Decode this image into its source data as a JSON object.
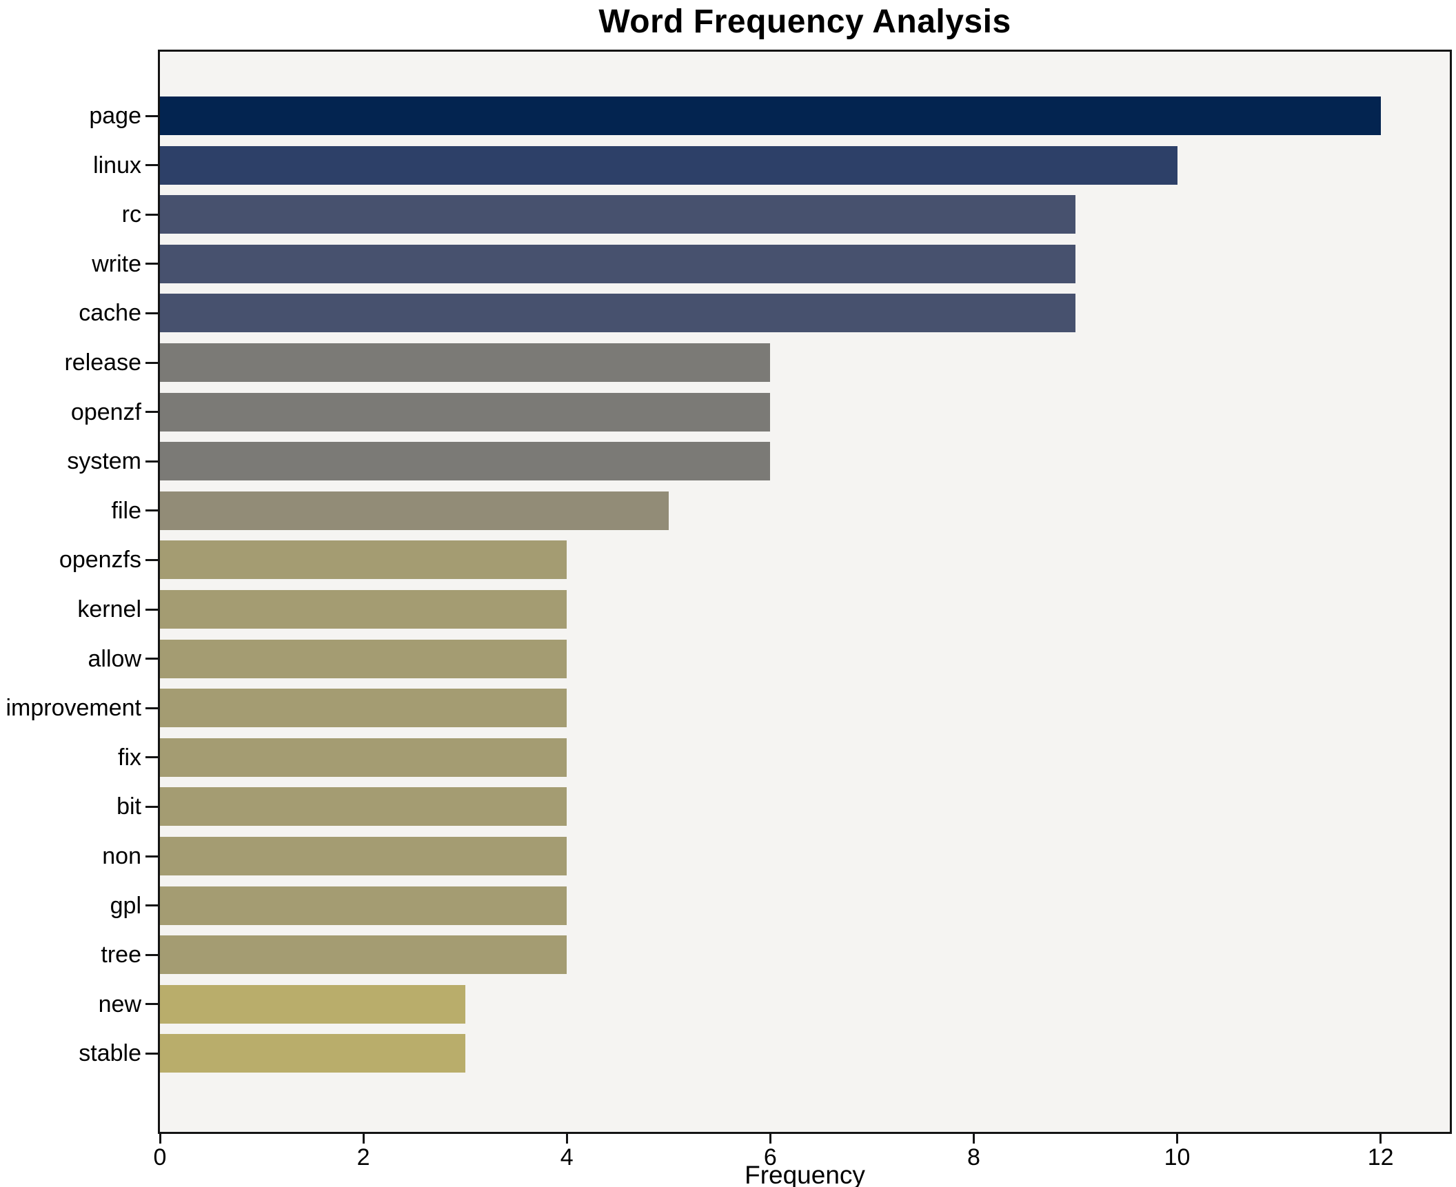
{
  "chart_data": {
    "type": "bar",
    "orientation": "horizontal",
    "title": "Word Frequency Analysis",
    "xlabel": "Frequency",
    "ylabel": "",
    "categories": [
      "page",
      "linux",
      "rc",
      "write",
      "cache",
      "release",
      "openzf",
      "system",
      "file",
      "openzfs",
      "kernel",
      "allow",
      "improvement",
      "fix",
      "bit",
      "non",
      "gpl",
      "tree",
      "new",
      "stable"
    ],
    "values": [
      12,
      10,
      9,
      9,
      9,
      6,
      6,
      6,
      5,
      4,
      4,
      4,
      4,
      4,
      4,
      4,
      4,
      4,
      3,
      3
    ],
    "bar_colors": [
      "#032450",
      "#2d4068",
      "#47516e",
      "#47516e",
      "#47516e",
      "#7b7a76",
      "#7b7a76",
      "#7b7a76",
      "#928c77",
      "#a49c72",
      "#a49c72",
      "#a49c72",
      "#a49c72",
      "#a49c72",
      "#a49c72",
      "#a49c72",
      "#a49c72",
      "#a49c72",
      "#b9ad6b",
      "#b9ad6b"
    ],
    "xticks": [
      0,
      2,
      4,
      6,
      8,
      10,
      12
    ],
    "xlim": [
      0,
      12.68
    ],
    "grid": false,
    "legend_position": "none"
  },
  "colors": {
    "figure_bg": "#ffffff",
    "plot_bg": "#f5f4f2",
    "spine": "#141414",
    "text": "#000000"
  }
}
